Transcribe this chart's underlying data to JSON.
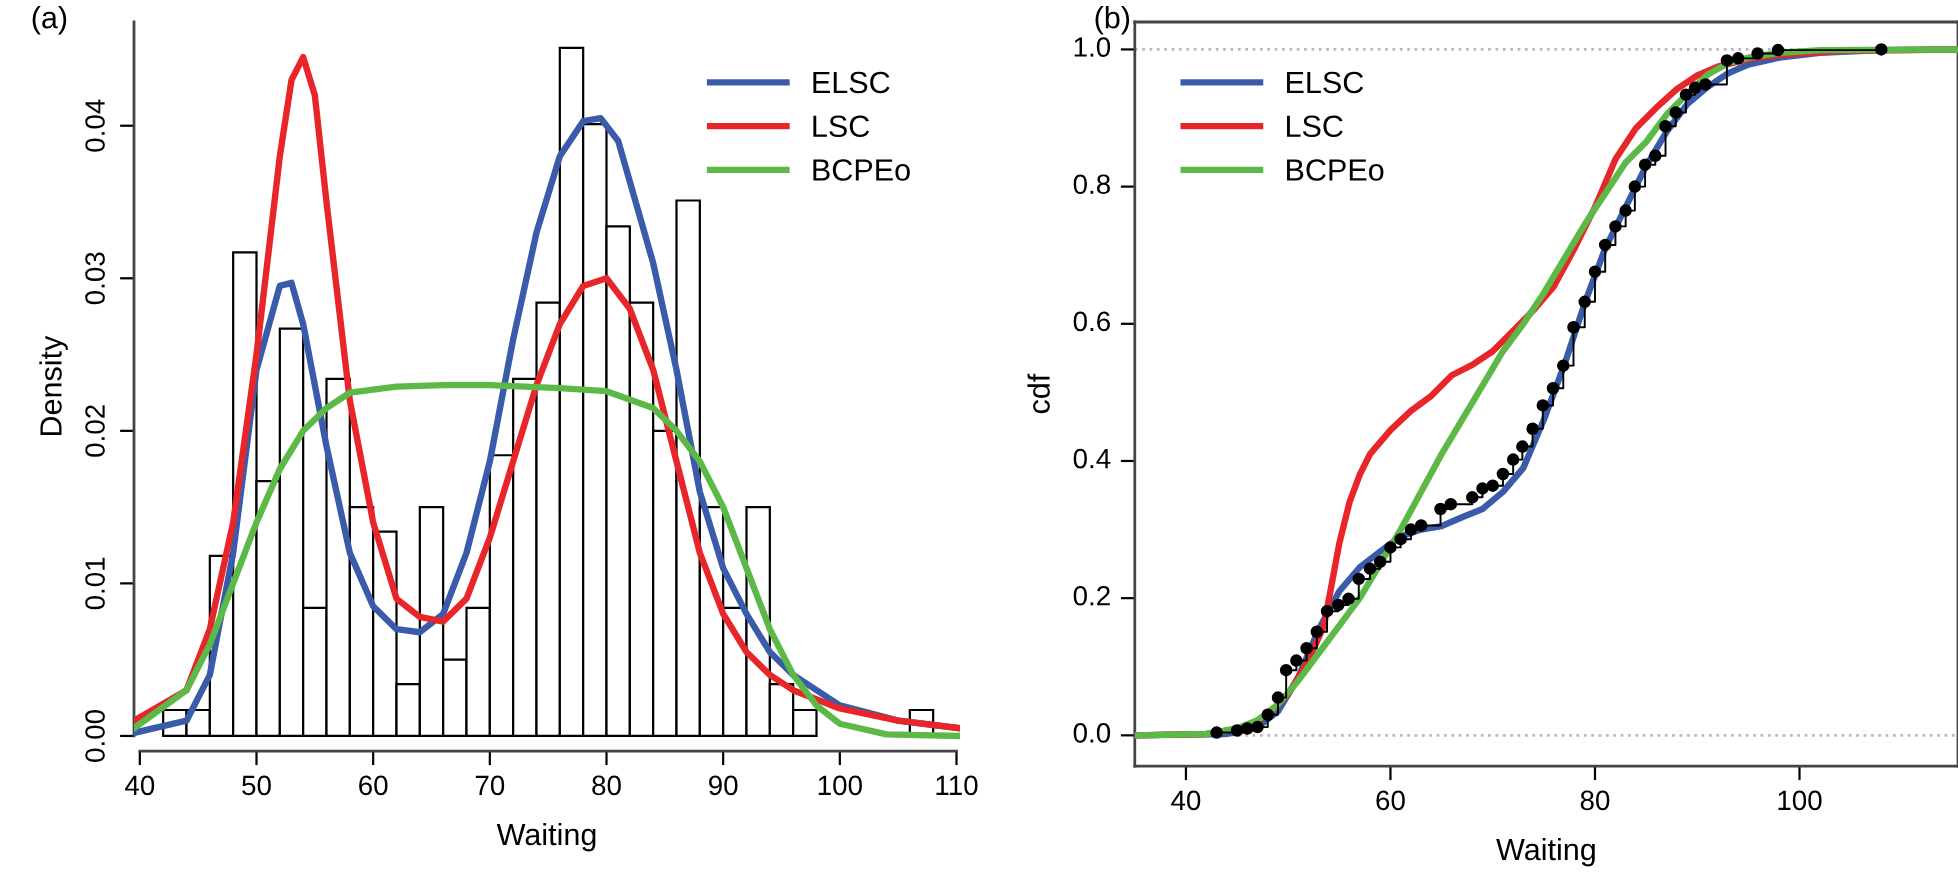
{
  "chart_data": [
    {
      "type": "histogram",
      "title": "(a)",
      "xlabel": "Waiting",
      "ylabel": "Density",
      "bins": [
        42,
        44,
        46,
        48,
        50,
        52,
        54,
        56,
        58,
        60,
        62,
        64,
        66,
        68,
        70,
        72,
        74,
        76,
        78,
        80,
        82,
        84,
        86,
        88,
        90,
        92,
        94,
        96,
        98,
        100,
        102,
        104,
        106,
        108
      ],
      "values": [
        0.0017,
        0.0017,
        0.0118,
        0.0317,
        0.0167,
        0.0267,
        0.0084,
        0.0234,
        0.015,
        0.0134,
        0.0034,
        0.015,
        0.005,
        0.0084,
        0.0184,
        0.0234,
        0.0284,
        0.0451,
        0.0401,
        0.0334,
        0.0284,
        0.02,
        0.0351,
        0.015,
        0.0084,
        0.015,
        0.0034,
        0.0017,
        0,
        0,
        0,
        0,
        0.0017
      ],
      "color": "#ffffff",
      "series": [
        {
          "type": "line",
          "name": "ELSC",
          "color": "#3a5ba9",
          "x": [
            39.5,
            44,
            46,
            48,
            50,
            52,
            53,
            54,
            56,
            58,
            60,
            62,
            64,
            66,
            68,
            70,
            72,
            74,
            76,
            78,
            79.5,
            81,
            84,
            86,
            88,
            90,
            92,
            94,
            96,
            100,
            105,
            110.3
          ],
          "values": [
            0.0002,
            0.001,
            0.004,
            0.012,
            0.024,
            0.0295,
            0.0297,
            0.027,
            0.019,
            0.012,
            0.0085,
            0.007,
            0.0068,
            0.008,
            0.012,
            0.018,
            0.026,
            0.033,
            0.038,
            0.0403,
            0.0405,
            0.039,
            0.031,
            0.024,
            0.016,
            0.011,
            0.008,
            0.0055,
            0.004,
            0.002,
            0.001,
            0.0005
          ]
        },
        {
          "type": "line",
          "name": "LSC",
          "color": "#e8262a",
          "x": [
            39.5,
            44,
            46,
            48,
            50,
            52,
            53,
            54,
            55,
            56,
            58,
            60,
            62,
            64,
            66,
            68,
            70,
            72,
            74,
            76,
            78,
            80,
            82,
            84,
            86,
            88,
            90,
            92,
            94,
            96,
            100,
            105,
            110.3
          ],
          "values": [
            0.001,
            0.003,
            0.007,
            0.014,
            0.025,
            0.038,
            0.043,
            0.0445,
            0.042,
            0.035,
            0.022,
            0.014,
            0.009,
            0.0078,
            0.0075,
            0.009,
            0.013,
            0.018,
            0.023,
            0.027,
            0.0295,
            0.03,
            0.028,
            0.024,
            0.018,
            0.012,
            0.008,
            0.0055,
            0.004,
            0.003,
            0.0018,
            0.001,
            0.0005
          ]
        },
        {
          "type": "line",
          "name": "BCPEo",
          "color": "#5cb947",
          "x": [
            39.5,
            44,
            46,
            48,
            50,
            52,
            54,
            56,
            58,
            62,
            66,
            70,
            76,
            80,
            84,
            86,
            88,
            90,
            92,
            94,
            96,
            98,
            100,
            104,
            110.3
          ],
          "values": [
            0.0005,
            0.003,
            0.006,
            0.01,
            0.014,
            0.0175,
            0.02,
            0.0215,
            0.0225,
            0.0229,
            0.023,
            0.023,
            0.0228,
            0.0226,
            0.0215,
            0.02,
            0.018,
            0.015,
            0.011,
            0.007,
            0.004,
            0.002,
            0.0008,
            0.0001,
            0
          ]
        }
      ],
      "xlim": [
        39.5,
        110.3
      ],
      "ylim": [
        -0.001,
        0.0468
      ],
      "xticks": [
        40,
        50,
        60,
        70,
        80,
        90,
        100,
        110
      ],
      "yticks": [
        {
          "value": 0,
          "label": "0.00"
        },
        {
          "value": 0.01,
          "label": "0.01"
        },
        {
          "value": 0.02,
          "label": "0.02"
        },
        {
          "value": 0.03,
          "label": "0.03"
        },
        {
          "value": 0.04,
          "label": "0.04"
        }
      ],
      "legend": "top right",
      "grid": false
    },
    {
      "type": "line",
      "title": "(b)",
      "xlabel": "Waiting",
      "ylabel": "cdf",
      "series": [
        {
          "type": "step",
          "color": "#000000",
          "marker": "circle",
          "x": [
            43,
            45,
            46,
            47,
            48,
            49,
            49.8,
            50.8,
            51.8,
            52.8,
            53.8,
            54.9,
            55.9,
            56.9,
            58,
            59,
            60,
            61,
            62,
            63,
            64.9,
            65.9,
            68,
            69,
            70,
            71,
            72,
            72.9,
            73.9,
            74.9,
            75.9,
            76.9,
            77.9,
            79,
            80,
            81,
            82,
            83,
            83.9,
            84.9,
            85.9,
            86.9,
            87.9,
            88.9,
            89.8,
            90.8,
            92.9,
            94,
            95.9,
            97.9,
            108
          ],
          "values": [
            0.004,
            0.007,
            0.01,
            0.012,
            0.03,
            0.055,
            0.095,
            0.109,
            0.127,
            0.151,
            0.181,
            0.19,
            0.199,
            0.228,
            0.243,
            0.253,
            0.274,
            0.286,
            0.3,
            0.306,
            0.33,
            0.337,
            0.347,
            0.36,
            0.364,
            0.381,
            0.402,
            0.421,
            0.447,
            0.481,
            0.506,
            0.539,
            0.595,
            0.632,
            0.676,
            0.715,
            0.742,
            0.765,
            0.8,
            0.832,
            0.845,
            0.888,
            0.908,
            0.934,
            0.944,
            0.949,
            0.984,
            0.987,
            0.994,
            0.999,
            1.0
          ]
        },
        {
          "type": "line",
          "name": "ELSC",
          "color": "#3a5ba9",
          "x": [
            35,
            44,
            47,
            49,
            51,
            53,
            55,
            57,
            59,
            61,
            63,
            65,
            67,
            69,
            71,
            73,
            75,
            77,
            79,
            81,
            83,
            85,
            87,
            89,
            91,
            93,
            95,
            98,
            102,
            108,
            115.5
          ],
          "values": [
            0,
            0.002,
            0.012,
            0.035,
            0.085,
            0.155,
            0.21,
            0.245,
            0.268,
            0.29,
            0.3,
            0.305,
            0.318,
            0.33,
            0.355,
            0.39,
            0.46,
            0.54,
            0.63,
            0.71,
            0.77,
            0.83,
            0.88,
            0.92,
            0.945,
            0.965,
            0.978,
            0.988,
            0.995,
            0.999,
            1.0
          ]
        },
        {
          "type": "line",
          "name": "LSC",
          "color": "#e8262a",
          "x": [
            35,
            42,
            46,
            48,
            50,
            52,
            53.5,
            55,
            56,
            57,
            58,
            60,
            62,
            64,
            66,
            68,
            70,
            72,
            74,
            76,
            78,
            80,
            82,
            84,
            86,
            88,
            90,
            92,
            95,
            98,
            104,
            115.5
          ],
          "values": [
            0,
            0.002,
            0.012,
            0.03,
            0.06,
            0.11,
            0.16,
            0.28,
            0.34,
            0.38,
            0.41,
            0.445,
            0.473,
            0.495,
            0.525,
            0.54,
            0.56,
            0.59,
            0.62,
            0.655,
            0.71,
            0.77,
            0.84,
            0.885,
            0.915,
            0.942,
            0.962,
            0.975,
            0.986,
            0.992,
            0.998,
            1.0
          ]
        },
        {
          "type": "line",
          "name": "BCPEo",
          "color": "#5cb947",
          "x": [
            35,
            42,
            45,
            47,
            49,
            51,
            53,
            55,
            57,
            59,
            61,
            63,
            65,
            67,
            69,
            71,
            73,
            75,
            77,
            79,
            81,
            83,
            85,
            87,
            89,
            91,
            93,
            95,
            98,
            102,
            115.5
          ],
          "values": [
            0,
            0.002,
            0.01,
            0.022,
            0.045,
            0.08,
            0.12,
            0.16,
            0.2,
            0.25,
            0.3,
            0.355,
            0.41,
            0.46,
            0.51,
            0.56,
            0.6,
            0.645,
            0.695,
            0.745,
            0.79,
            0.835,
            0.865,
            0.905,
            0.935,
            0.963,
            0.98,
            0.988,
            0.995,
            0.999,
            1.0
          ]
        }
      ],
      "ref_lines": [
        {
          "axis": "y",
          "value": 0,
          "color": "#bbbbbb",
          "line_style": "dotted"
        },
        {
          "axis": "y",
          "value": 1,
          "color": "#bbbbbb",
          "line_style": "dotted"
        }
      ],
      "xlim": [
        35,
        115.5
      ],
      "ylim": [
        -0.045,
        1.04
      ],
      "xticks": [
        40,
        60,
        80,
        100
      ],
      "yticks": [
        {
          "value": 0,
          "label": "0.0"
        },
        {
          "value": 0.2,
          "label": "0.2"
        },
        {
          "value": 0.4,
          "label": "0.4"
        },
        {
          "value": 0.6,
          "label": "0.6"
        },
        {
          "value": 0.8,
          "label": "0.8"
        },
        {
          "value": 1,
          "label": "1.0"
        }
      ],
      "legend": "top left",
      "grid": false
    }
  ]
}
